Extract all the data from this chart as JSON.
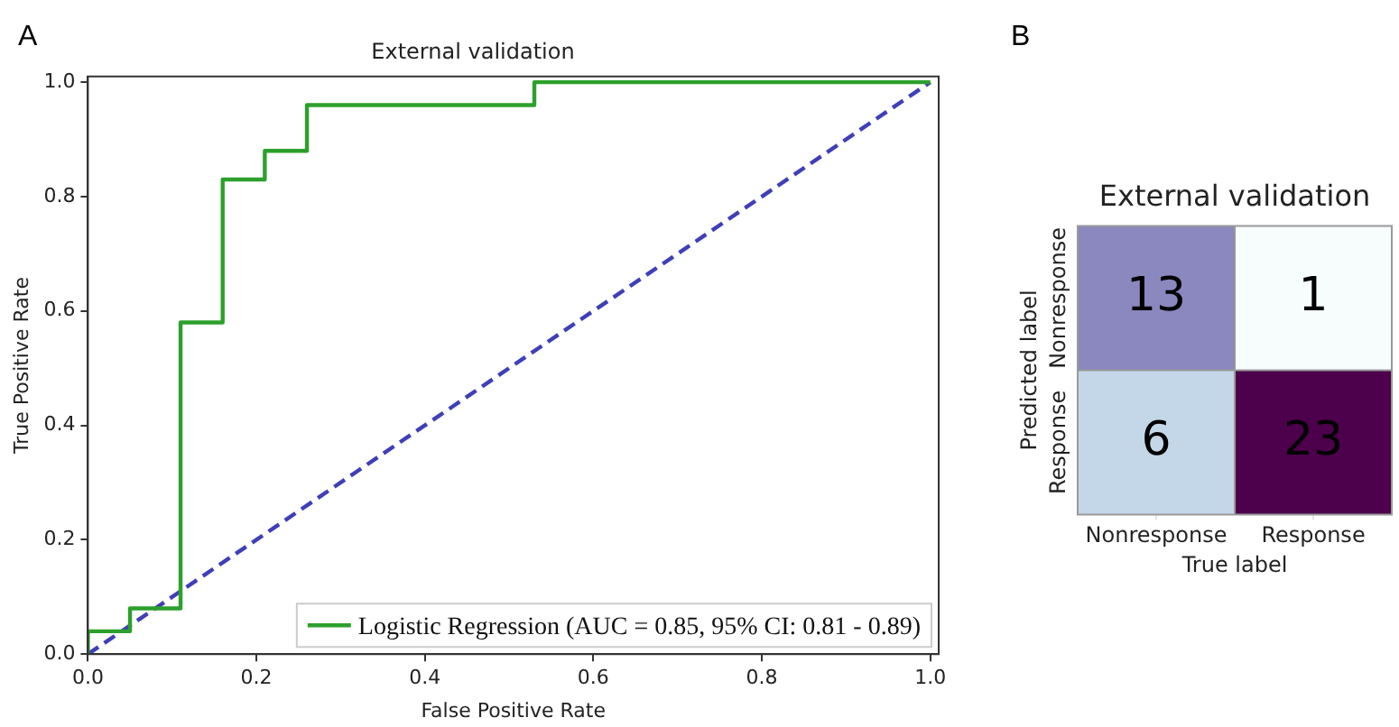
{
  "chart_data": [
    {
      "type": "line",
      "title": "External validation",
      "xlabel": "False Positive Rate",
      "ylabel": "True Positive Rate",
      "annotations": [
        "A"
      ],
      "series": [
        {
          "name": "Logistic Regression (AUC = 0.85, 95% CI: 0.81 - 0.89)",
          "color": "#2ca02c",
          "line_style": "solid",
          "x": [
            0,
            0,
            0.05,
            0.05,
            0.11,
            0.11,
            0.16,
            0.16,
            0.21,
            0.21,
            0.26,
            0.26,
            0.53,
            0.53,
            1
          ],
          "values": [
            0,
            0.04,
            0.04,
            0.08,
            0.08,
            0.58,
            0.58,
            0.83,
            0.83,
            0.88,
            0.88,
            0.96,
            0.96,
            1,
            1
          ]
        },
        {
          "color": "#3f3fb8",
          "line_style": "dashed",
          "x": [
            0,
            1
          ],
          "values": [
            0,
            1
          ]
        }
      ],
      "xlim": [
        0,
        1.01
      ],
      "ylim": [
        0,
        1.01
      ],
      "xticks": [
        {
          "value": 0,
          "label": "0.0"
        },
        0.2,
        0.4,
        0.6,
        0.8,
        {
          "value": 1,
          "label": "1.0"
        }
      ],
      "yticks": [
        {
          "value": 0,
          "label": "0.0"
        },
        0.2,
        0.4,
        0.6,
        0.8,
        {
          "value": 1,
          "label": "1.0"
        }
      ],
      "legend": "bottom right",
      "marker": "none"
    },
    {
      "type": "heatmap",
      "title": "External validation",
      "xlabel": "True label",
      "ylabel": "Predicted label",
      "annotations": [
        "B"
      ],
      "categories": [
        "Nonresponse",
        "Response"
      ],
      "y_categories": [
        "Nonresponse",
        "Response"
      ],
      "cells": [
        [
          13,
          1
        ],
        [
          6,
          23
        ]
      ],
      "data_labels": true
    }
  ]
}
